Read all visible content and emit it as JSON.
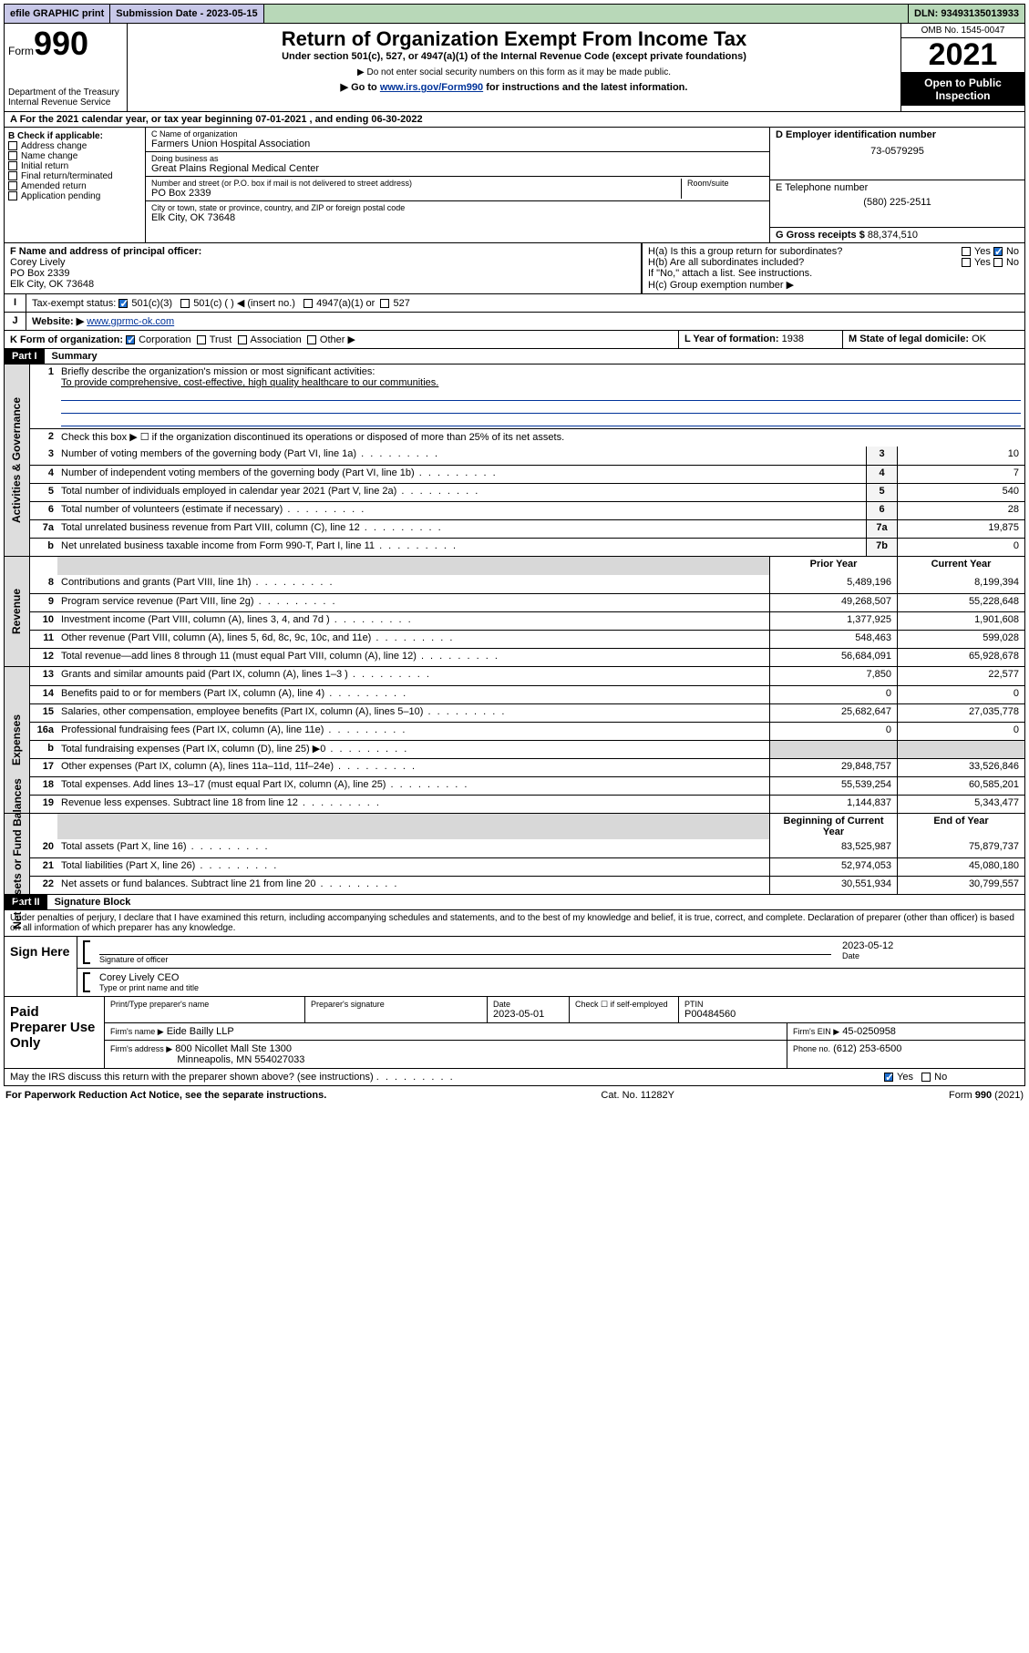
{
  "topbar": {
    "efile": "efile GRAPHIC print",
    "submission_label": "Submission Date - 2023-05-15",
    "dln": "DLN: 93493135013933"
  },
  "header": {
    "form_label": "Form",
    "form_no": "990",
    "dept": "Department of the Treasury",
    "irs": "Internal Revenue Service",
    "title": "Return of Organization Exempt From Income Tax",
    "sub1": "Under section 501(c), 527, or 4947(a)(1) of the Internal Revenue Code (except private foundations)",
    "sub2": "▶ Do not enter social security numbers on this form as it may be made public.",
    "sub3_pre": "▶ Go to ",
    "sub3_link": "www.irs.gov/Form990",
    "sub3_post": " for instructions and the latest information.",
    "omb": "OMB No. 1545-0047",
    "year": "2021",
    "open": "Open to Public Inspection"
  },
  "rowA": "A For the 2021 calendar year, or tax year beginning 07-01-2021   , and ending 06-30-2022",
  "colB": {
    "head": "B Check if applicable:",
    "items": [
      "Address change",
      "Name change",
      "Initial return",
      "Final return/terminated",
      "Amended return",
      "Application pending"
    ]
  },
  "colC": {
    "name_lbl": "C Name of organization",
    "name": "Farmers Union Hospital Association",
    "dba_lbl": "Doing business as",
    "dba": "Great Plains Regional Medical Center",
    "addr_lbl": "Number and street (or P.O. box if mail is not delivered to street address)",
    "room_lbl": "Room/suite",
    "addr": "PO Box 2339",
    "city_lbl": "City or town, state or province, country, and ZIP or foreign postal code",
    "city": "Elk City, OK  73648"
  },
  "colD": {
    "ein_lbl": "D Employer identification number",
    "ein": "73-0579295",
    "tel_lbl": "E Telephone number",
    "tel": "(580) 225-2511",
    "gross_lbl": "G Gross receipts $",
    "gross": "88,374,510"
  },
  "rowF": {
    "lbl": "F Name and address of principal officer:",
    "name": "Corey Lively",
    "addr1": "PO Box 2339",
    "addr2": "Elk City, OK  73648"
  },
  "rowH": {
    "a": "H(a)  Is this a group return for subordinates?",
    "b": "H(b)  Are all subordinates included?",
    "b_note": "If \"No,\" attach a list. See instructions.",
    "c": "H(c)  Group exemption number ▶",
    "yes": "Yes",
    "no": "No"
  },
  "rowI": {
    "lbl": "Tax-exempt status:",
    "c3": "501(c)(3)",
    "c": "501(c) (  ) ◀ (insert no.)",
    "a1": "4947(a)(1) or",
    "s527": "527"
  },
  "rowJ": {
    "lbl": "Website: ▶",
    "url": "www.gprmc-ok.com"
  },
  "rowK": {
    "lbl": "K Form of organization:",
    "corp": "Corporation",
    "trust": "Trust",
    "assoc": "Association",
    "other": "Other ▶"
  },
  "rowL": {
    "lbl": "L Year of formation:",
    "val": "1938"
  },
  "rowM": {
    "lbl": "M State of legal domicile:",
    "val": "OK"
  },
  "part1": {
    "label": "Part I",
    "title": "Summary"
  },
  "sec_ag": {
    "label": "Activities & Governance",
    "l1": "Briefly describe the organization's mission or most significant activities:",
    "l1v": "To provide comprehensive, cost-effective, high quality healthcare to our communities.",
    "l2": "Check this box ▶ ☐  if the organization discontinued its operations or disposed of more than 25% of its net assets.",
    "rows": [
      {
        "n": "3",
        "t": "Number of voting members of the governing body (Part VI, line 1a)",
        "b": "3",
        "v": "10"
      },
      {
        "n": "4",
        "t": "Number of independent voting members of the governing body (Part VI, line 1b)",
        "b": "4",
        "v": "7"
      },
      {
        "n": "5",
        "t": "Total number of individuals employed in calendar year 2021 (Part V, line 2a)",
        "b": "5",
        "v": "540"
      },
      {
        "n": "6",
        "t": "Total number of volunteers (estimate if necessary)",
        "b": "6",
        "v": "28"
      },
      {
        "n": "7a",
        "t": "Total unrelated business revenue from Part VIII, column (C), line 12",
        "b": "7a",
        "v": "19,875"
      },
      {
        "n": "b",
        "t": "Net unrelated business taxable income from Form 990-T, Part I, line 11",
        "b": "7b",
        "v": "0"
      }
    ]
  },
  "sec_rev": {
    "label": "Revenue",
    "hdr_prior": "Prior Year",
    "hdr_curr": "Current Year",
    "rows": [
      {
        "n": "8",
        "t": "Contributions and grants (Part VIII, line 1h)",
        "p": "5,489,196",
        "c": "8,199,394"
      },
      {
        "n": "9",
        "t": "Program service revenue (Part VIII, line 2g)",
        "p": "49,268,507",
        "c": "55,228,648"
      },
      {
        "n": "10",
        "t": "Investment income (Part VIII, column (A), lines 3, 4, and 7d )",
        "p": "1,377,925",
        "c": "1,901,608"
      },
      {
        "n": "11",
        "t": "Other revenue (Part VIII, column (A), lines 5, 6d, 8c, 9c, 10c, and 11e)",
        "p": "548,463",
        "c": "599,028"
      },
      {
        "n": "12",
        "t": "Total revenue—add lines 8 through 11 (must equal Part VIII, column (A), line 12)",
        "p": "56,684,091",
        "c": "65,928,678"
      }
    ]
  },
  "sec_exp": {
    "label": "Expenses",
    "rows": [
      {
        "n": "13",
        "t": "Grants and similar amounts paid (Part IX, column (A), lines 1–3 )",
        "p": "7,850",
        "c": "22,577"
      },
      {
        "n": "14",
        "t": "Benefits paid to or for members (Part IX, column (A), line 4)",
        "p": "0",
        "c": "0"
      },
      {
        "n": "15",
        "t": "Salaries, other compensation, employee benefits (Part IX, column (A), lines 5–10)",
        "p": "25,682,647",
        "c": "27,035,778"
      },
      {
        "n": "16a",
        "t": "Professional fundraising fees (Part IX, column (A), line 11e)",
        "p": "0",
        "c": "0"
      },
      {
        "n": "b",
        "t": "Total fundraising expenses (Part IX, column (D), line 25) ▶0",
        "p": "",
        "c": "",
        "shade": true
      },
      {
        "n": "17",
        "t": "Other expenses (Part IX, column (A), lines 11a–11d, 11f–24e)",
        "p": "29,848,757",
        "c": "33,526,846"
      },
      {
        "n": "18",
        "t": "Total expenses. Add lines 13–17 (must equal Part IX, column (A), line 25)",
        "p": "55,539,254",
        "c": "60,585,201"
      },
      {
        "n": "19",
        "t": "Revenue less expenses. Subtract line 18 from line 12",
        "p": "1,144,837",
        "c": "5,343,477"
      }
    ]
  },
  "sec_na": {
    "label": "Net Assets or Fund Balances",
    "hdr_beg": "Beginning of Current Year",
    "hdr_end": "End of Year",
    "rows": [
      {
        "n": "20",
        "t": "Total assets (Part X, line 16)",
        "p": "83,525,987",
        "c": "75,879,737"
      },
      {
        "n": "21",
        "t": "Total liabilities (Part X, line 26)",
        "p": "52,974,053",
        "c": "45,080,180"
      },
      {
        "n": "22",
        "t": "Net assets or fund balances. Subtract line 21 from line 20",
        "p": "30,551,934",
        "c": "30,799,557"
      }
    ]
  },
  "part2": {
    "label": "Part II",
    "title": "Signature Block"
  },
  "penalties": "Under penalties of perjury, I declare that I have examined this return, including accompanying schedules and statements, and to the best of my knowledge and belief, it is true, correct, and complete. Declaration of preparer (other than officer) is based on all information of which preparer has any knowledge.",
  "sign": {
    "here": "Sign Here",
    "sig_lbl": "Signature of officer",
    "date_lbl": "Date",
    "date": "2023-05-12",
    "name": "Corey Lively CEO",
    "name_lbl": "Type or print name and title"
  },
  "prep": {
    "title": "Paid Preparer Use Only",
    "h1": "Print/Type preparer's name",
    "h2": "Preparer's signature",
    "h3": "Date",
    "date": "2023-05-01",
    "check_lbl": "Check ☐ if self-employed",
    "ptin_lbl": "PTIN",
    "ptin": "P00484560",
    "firm_lbl": "Firm's name    ▶",
    "firm": "Eide Bailly LLP",
    "ein_lbl": "Firm's EIN ▶",
    "ein": "45-0250958",
    "addr_lbl": "Firm's address ▶",
    "addr1": "800 Nicollet Mall Ste 1300",
    "addr2": "Minneapolis, MN  554027033",
    "phone_lbl": "Phone no.",
    "phone": "(612) 253-6500"
  },
  "discuss": {
    "q": "May the IRS discuss this return with the preparer shown above? (see instructions)",
    "yes": "Yes",
    "no": "No"
  },
  "footer": {
    "left": "For Paperwork Reduction Act Notice, see the separate instructions.",
    "mid": "Cat. No. 11282Y",
    "right": "Form 990 (2021)"
  }
}
